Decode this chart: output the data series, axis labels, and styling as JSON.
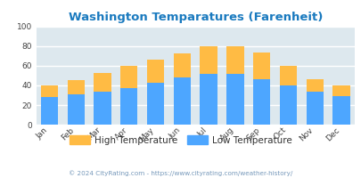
{
  "title": "Washington Temparatures (Farenheit)",
  "months": [
    "Jan",
    "Feb",
    "Mar",
    "Apr",
    "May",
    "Jun",
    "Jul",
    "Aug",
    "Sep",
    "Oct",
    "Nov",
    "Dec"
  ],
  "low_temps": [
    28,
    31,
    34,
    37,
    43,
    48,
    52,
    52,
    46,
    40,
    34,
    29
  ],
  "high_temps": [
    40,
    45,
    53,
    60,
    66,
    73,
    80,
    80,
    74,
    60,
    46,
    40
  ],
  "low_color": "#4da6ff",
  "high_color": "#ffbb44",
  "bg_color": "#dde8ee",
  "title_color": "#1a7abf",
  "ylabel_ticks": [
    0,
    20,
    40,
    60,
    80,
    100
  ],
  "ylim": [
    0,
    100
  ],
  "legend_low": "Low Temperature",
  "legend_high": "High Temperature",
  "footer": "© 2024 CityRating.com - https://www.cityrating.com/weather-history/",
  "legend_text_color": "#333333",
  "footer_color": "#7799bb"
}
